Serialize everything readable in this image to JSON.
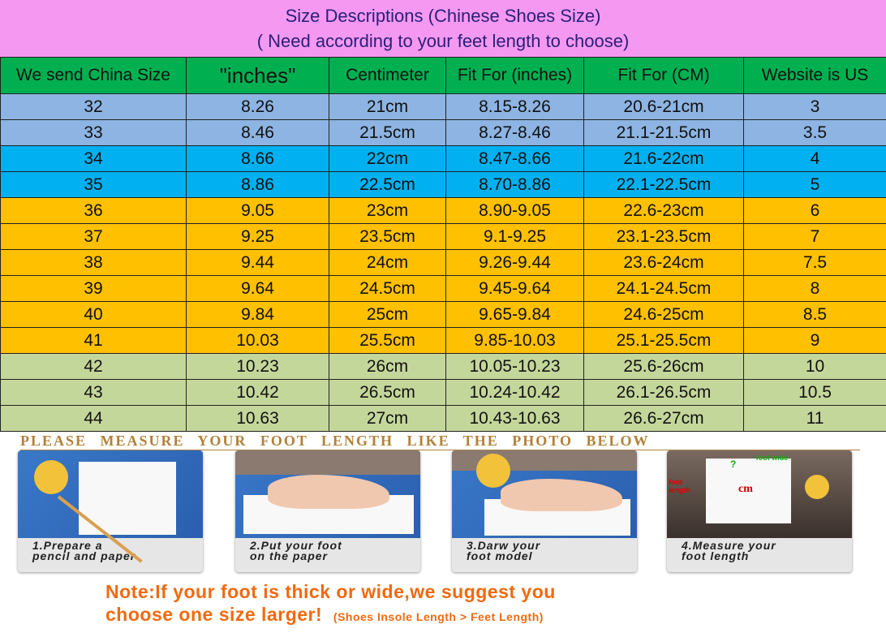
{
  "title": {
    "line1": "Size Descriptions  (Chinese Shoes Size)",
    "line2": "( Need according to your feet length to choose)"
  },
  "table": {
    "headers": [
      "We send China Size",
      "\"inches\"",
      "Centimeter",
      "Fit For (inches)",
      "Fit For (CM)",
      "Website is  US"
    ],
    "rows": [
      [
        "32",
        "8.26",
        "21cm",
        "8.15-8.26",
        "20.6-21cm",
        "3"
      ],
      [
        "33",
        "8.46",
        "21.5cm",
        "8.27-8.46",
        "21.1-21.5cm",
        "3.5"
      ],
      [
        "34",
        "8.66",
        "22cm",
        "8.47-8.66",
        "21.6-22cm",
        "4"
      ],
      [
        "35",
        "8.86",
        "22.5cm",
        "8.70-8.86",
        "22.1-22.5cm",
        "5"
      ],
      [
        "36",
        "9.05",
        "23cm",
        "8.90-9.05",
        "22.6-23cm",
        "6"
      ],
      [
        "37",
        "9.25",
        "23.5cm",
        "9.1-9.25",
        "23.1-23.5cm",
        "7"
      ],
      [
        "38",
        "9.44",
        "24cm",
        "9.26-9.44",
        "23.6-24cm",
        "7.5"
      ],
      [
        "39",
        "9.64",
        "24.5cm",
        "9.45-9.64",
        "24.1-24.5cm",
        "8"
      ],
      [
        "40",
        "9.84",
        "25cm",
        "9.65-9.84",
        "24.6-25cm",
        "8.5"
      ],
      [
        "41",
        "10.03",
        "25.5cm",
        "9.85-10.03",
        "25.1-25.5cm",
        "9"
      ],
      [
        "42",
        "10.23",
        "26cm",
        "10.05-10.23",
        "25.6-26cm",
        "10"
      ],
      [
        "43",
        "10.42",
        "26.5cm",
        "10.24-10.42",
        "26.1-26.5cm",
        "10.5"
      ],
      [
        "44",
        "10.63",
        "27cm",
        "10.43-10.63",
        "26.6-27cm",
        "11"
      ]
    ],
    "row_colors": {
      "blue": "#8db4e2",
      "cyan": "#00b0f0",
      "orange": "#ffc000",
      "olive": "#c4d79b",
      "header": "#00b050"
    }
  },
  "measure": {
    "heading": "PLEASE MEASURE YOUR FOOT LENGTH LIKE THE PHOTO BELOW",
    "steps": [
      {
        "line1": "1.Prepare a",
        "line2": "pencil and paper"
      },
      {
        "line1": "2.Put your foot",
        "line2": "on the paper"
      },
      {
        "line1": "3.Darw your",
        "line2": "foot model"
      },
      {
        "line1": "4.Measure your",
        "line2": "foot length"
      }
    ],
    "photo_labels": {
      "foot_wide": "foot wide",
      "foot_length": "foot length",
      "unit": "cm",
      "unknown": "?"
    },
    "note_line1": "Note:If your foot is thick or wide,we suggest you",
    "note_line2": "choose one size larger!",
    "note_small": "(Shoes Insole Length > Feet Length)"
  }
}
